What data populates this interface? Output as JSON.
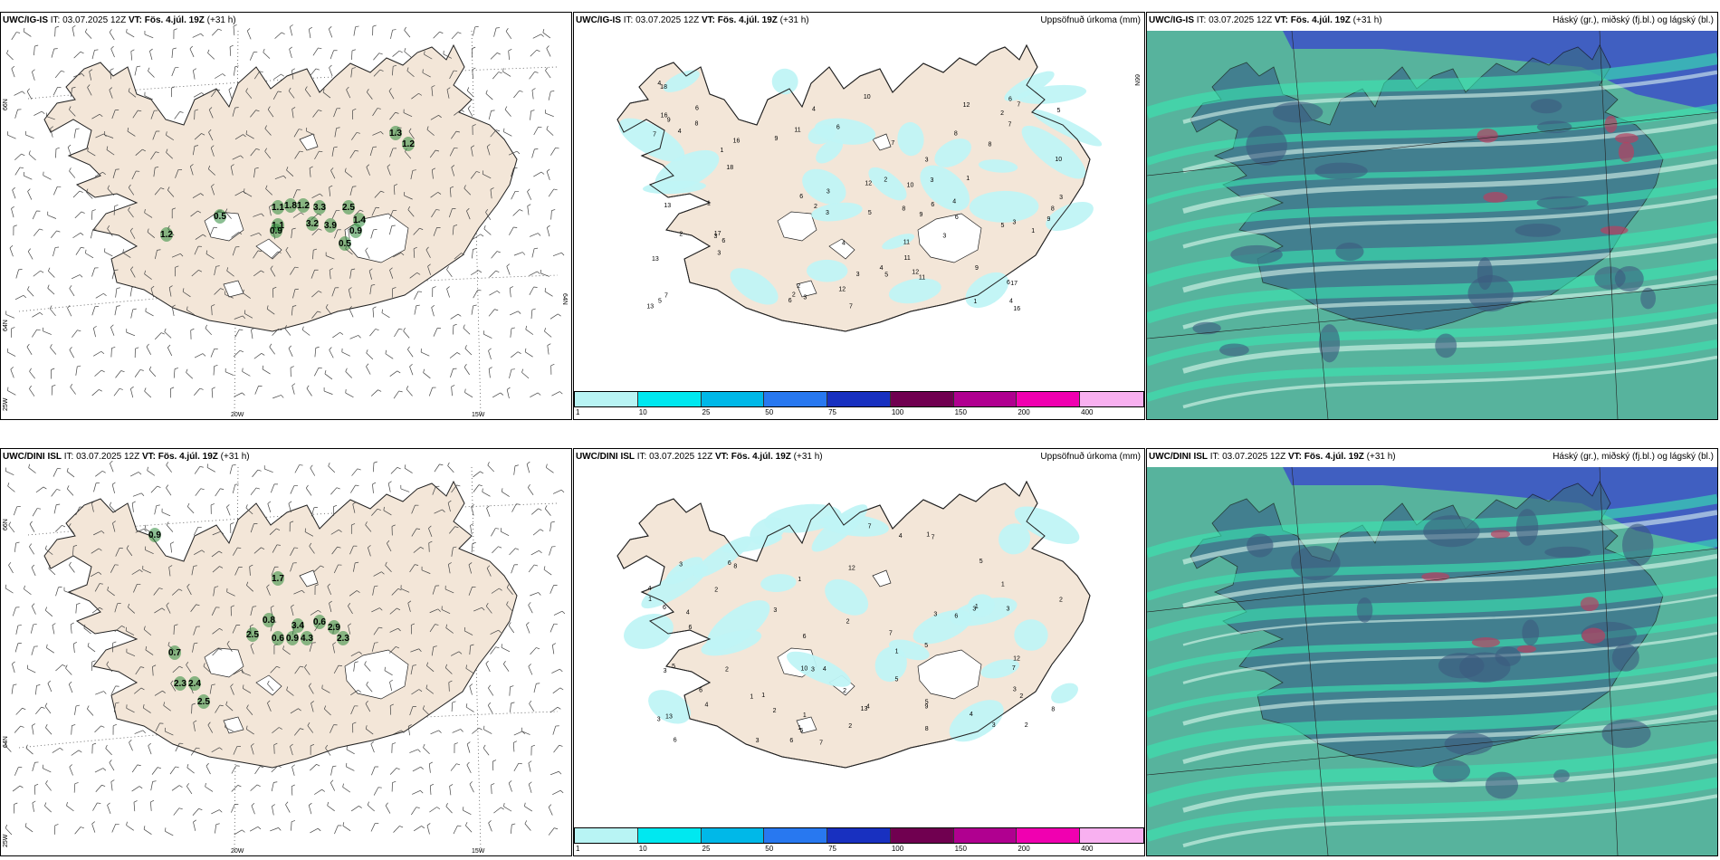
{
  "top": {
    "wind": {
      "model": "UWC/IG-IS",
      "it": "IT: 03.07.2025 12Z",
      "vt_label": "VT:",
      "vt": "Fös. 4.júl. 19Z",
      "lead": "(+31 h)",
      "labels": [
        "1.3",
        "1.2",
        "0.5",
        "1.2",
        "1.1",
        "1.8",
        "1.2",
        "1.1",
        "3.3",
        "3.2",
        "3.9",
        "2.5",
        "1.4",
        "0.9",
        "0.5",
        "0.9"
      ]
    },
    "precip": {
      "model": "UWC/IG-IS",
      "it": "IT: 03.07.2025 12Z",
      "vt_label": "VT:",
      "vt": "Fös. 4.júl. 19Z",
      "lead": "(+31 h)",
      "title": "Uppsöfnuð úrkoma (mm)",
      "labels": [
        "3",
        "4",
        "17",
        "9",
        "6",
        "7",
        "3",
        "5",
        "6",
        "2",
        "3",
        "4",
        "3",
        "5",
        "16",
        "18",
        "10",
        "12",
        "12",
        "13",
        "17",
        "16",
        "8",
        "9",
        "7",
        "6",
        "5",
        "4",
        "2",
        "3",
        "3",
        "11",
        "8",
        "12",
        "11",
        "10",
        "9",
        "7",
        "6",
        "18",
        "16",
        "11",
        "8",
        "7",
        "5",
        "6",
        "3",
        "4",
        "8",
        "6",
        "13",
        "4",
        "2",
        "3",
        "10",
        "9",
        "8",
        "12",
        "11",
        "7",
        "6",
        "5",
        "4",
        "3",
        "2",
        "1",
        "1",
        "1",
        "2",
        "13",
        "3",
        "3",
        "2",
        "9",
        "4",
        "6",
        "6",
        "7",
        "1",
        "1"
      ]
    },
    "cloud": {
      "model": "UWC/IG-IS",
      "it": "IT: 03.07.2025 12Z",
      "vt_label": "VT:",
      "vt": "Fös. 4.júl. 19Z",
      "lead": "(+31 h)",
      "title": "Háský (gr.), miðský (fj.bl.) og lágský (bl.)"
    }
  },
  "bottom": {
    "wind": {
      "model": "UWC/DINI ISL",
      "it": "IT: 03.07.2025 12Z",
      "vt_label": "VT:",
      "vt": "Fös. 4.júl. 19Z",
      "lead": "(+31 h)",
      "labels": [
        "0.9",
        "1.7",
        "0.7",
        "2.3",
        "2.4",
        "2.5",
        "0.8",
        "3.4",
        "0.6",
        "0.9",
        "4.3",
        "0.6",
        "2.9",
        "2.3",
        "2.5"
      ]
    },
    "precip": {
      "model": "UWC/DINI ISL",
      "it": "IT: 03.07.2025 12Z",
      "vt_label": "VT:",
      "vt": "Fös. 4.júl. 19Z",
      "lead": "(+31 h)",
      "title": "Uppsöfnuð úrkoma (mm)",
      "labels": [
        "3",
        "6",
        "2",
        "4",
        "3",
        "5",
        "6",
        "8",
        "7",
        "3",
        "2",
        "3",
        "5",
        "3",
        "2",
        "1",
        "7",
        "6",
        "2",
        "12",
        "9",
        "6",
        "7",
        "3",
        "5",
        "4",
        "13",
        "8",
        "7",
        "4",
        "1",
        "2",
        "6",
        "3",
        "13",
        "12",
        "6",
        "5",
        "4",
        "10",
        "2",
        "3",
        "1",
        "1",
        "2",
        "3",
        "4",
        "7",
        "5",
        "6",
        "8",
        "4",
        "3",
        "1",
        "1",
        "1",
        "2",
        "5",
        "6",
        "3",
        "1",
        "1",
        "2",
        "1",
        "4"
      ]
    },
    "cloud": {
      "model": "UWC/DINI ISL",
      "it": "IT: 03.07.2025 12Z",
      "vt_label": "VT:",
      "vt": "Fös. 4.júl. 19Z",
      "lead": "(+31 h)",
      "title": "Háský (gr.), miðský (fj.bl.) og lágský (bl.)"
    }
  },
  "axes": {
    "lat66": "66N",
    "lat64": "64N",
    "lon20": "20W",
    "lon15": "15W",
    "lon25": "25W"
  },
  "legend": {
    "ticks": [
      "1",
      "10",
      "25",
      "50",
      "75",
      "100",
      "150",
      "200",
      "400"
    ],
    "colors": [
      "#b8f4f4",
      "#00e8f0",
      "#00b8e8",
      "#2878f0",
      "#1830c0",
      "#700050",
      "#b00090",
      "#f000b0",
      "#f8b0f0"
    ]
  },
  "colors": {
    "land": "#f3e6d8",
    "precip_light": "#c0f4f6",
    "wind_green": "#2e8b3a",
    "cloud_teal": "#3aa68c",
    "cloud_blue": "#3c50c8"
  }
}
